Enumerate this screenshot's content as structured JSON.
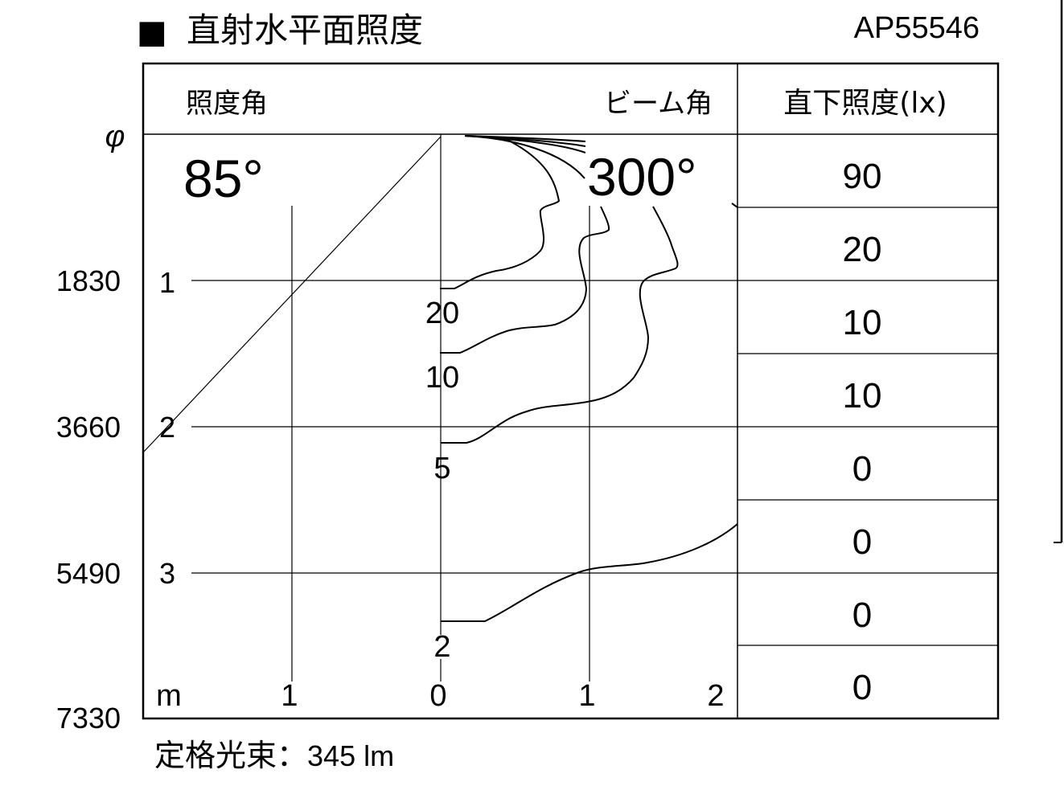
{
  "title": {
    "marker": "■",
    "text": "直射水平面照度"
  },
  "model": "AP55546",
  "header": {
    "illum_angle_label": "照度角",
    "beam_angle_label": "ビーム角",
    "direct_label": "直下照度(lx)"
  },
  "phi_symbol": "φ",
  "illum_angle": "85°",
  "beam_angle": "300°",
  "direct_illuminance": [
    "90",
    "20",
    "10",
    "10",
    "0",
    "0",
    "0",
    "0"
  ],
  "left_axis": {
    "diameters": [
      "1830",
      "3660",
      "5490",
      "7330"
    ],
    "heights": [
      "1",
      "2",
      "3"
    ]
  },
  "bottom_axis": {
    "unit": "m",
    "ticks": [
      "1",
      "0",
      "1",
      "2"
    ]
  },
  "contour_labels": [
    "20",
    "10",
    "5",
    "2"
  ],
  "footer": {
    "label": "定格光束",
    "separator": "：",
    "value": "345 lm"
  }
}
